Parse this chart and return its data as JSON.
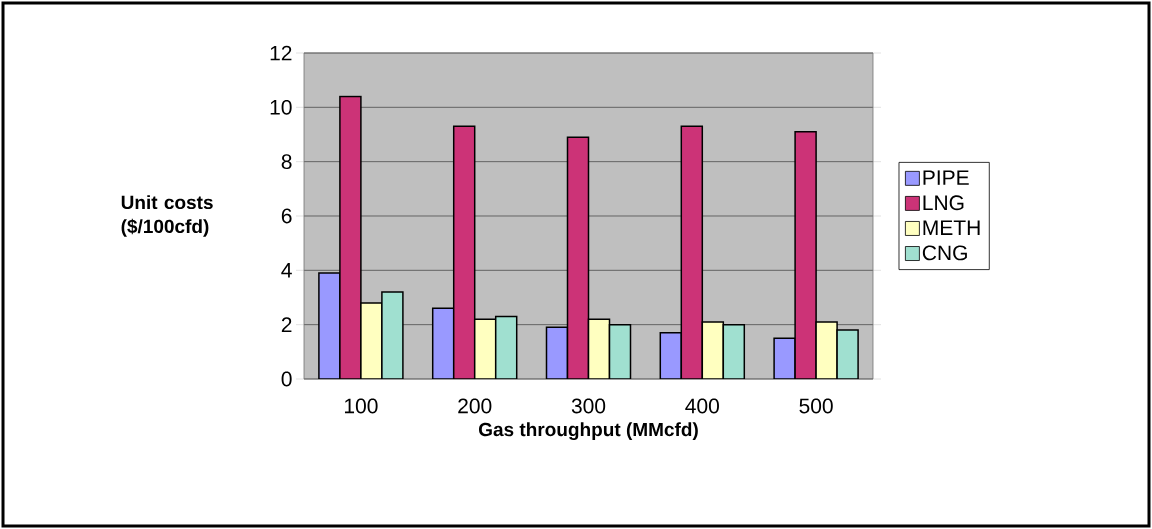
{
  "chart_data": {
    "type": "bar",
    "xlabel": "Gas throughput (MMcfd)",
    "ylabel": "Unit costs ($/100cfd)",
    "categories": [
      "100",
      "200",
      "300",
      "400",
      "500"
    ],
    "series": [
      {
        "name": "PIPE",
        "color": "#9999ff",
        "values": [
          3.9,
          2.6,
          1.9,
          1.7,
          1.5
        ]
      },
      {
        "name": "LNG",
        "color": "#cc3377",
        "values": [
          10.4,
          9.3,
          8.9,
          9.3,
          9.1
        ]
      },
      {
        "name": "METH",
        "color": "#ffffc0",
        "values": [
          2.8,
          2.2,
          2.2,
          2.1,
          2.1
        ]
      },
      {
        "name": "CNG",
        "color": "#a0e0d0",
        "values": [
          3.2,
          2.3,
          2.0,
          2.0,
          1.8
        ]
      }
    ],
    "ylim": [
      0,
      12
    ],
    "yticks": [
      0,
      2,
      4,
      6,
      8,
      10,
      12
    ],
    "grid": "y",
    "legend": "right"
  }
}
